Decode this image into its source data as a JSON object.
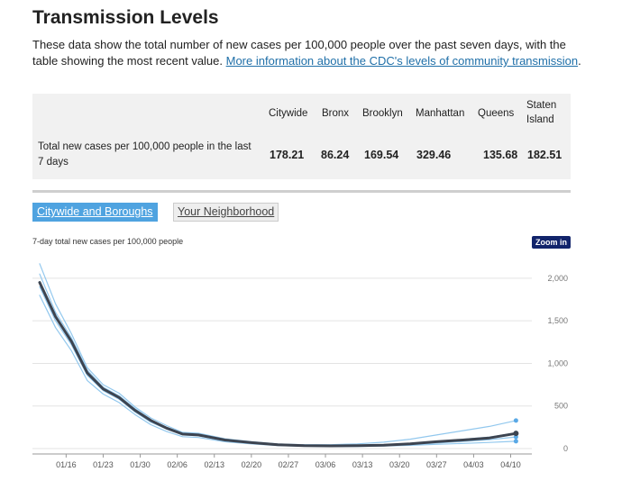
{
  "header": {
    "title": "Transmission Levels",
    "desc_text": "These data show the total number of new cases per 100,000 people over the past seven days, with the table showing the most recent value. ",
    "desc_link": "More information about the CDC's levels of community transmission",
    "desc_end": "."
  },
  "table": {
    "headers": [
      "Citywide",
      "Bronx",
      "Brooklyn",
      "Manhattan",
      "Queens",
      "Staten Island"
    ],
    "row_label": "Total new cases per 100,000 people in the last 7 days",
    "values": [
      "178.21",
      "86.24",
      "169.54",
      "329.46",
      "135.68",
      "182.51"
    ]
  },
  "tabs": {
    "active": "Citywide and Boroughs",
    "inactive": "Your Neighborhood"
  },
  "zoom_label": "Zoom in",
  "colors": {
    "citywide": "#3d4450",
    "borough": "#92c8ee",
    "dot": "#5aa9e6",
    "grid": "#e3e3e3"
  },
  "chart_data": {
    "type": "line",
    "title": "7-day total new cases per 100,000 people",
    "ylabel": "7-day total new cases per 100,000 people",
    "ylim": [
      0,
      2200
    ],
    "yticks": [
      0,
      500,
      1000,
      1500,
      2000
    ],
    "ytick_labels": [
      "0",
      "500",
      "1,000",
      "1,500",
      "2,000"
    ],
    "xlim": [
      0,
      93
    ],
    "x_tick_positions": [
      5,
      12,
      19,
      26,
      33,
      40,
      47,
      54,
      61,
      68,
      75,
      82,
      89
    ],
    "xtick_labels": [
      "01/16",
      "01/23",
      "01/30",
      "02/06",
      "02/13",
      "02/20",
      "02/27",
      "03/06",
      "03/13",
      "03/20",
      "03/27",
      "04/03",
      "04/10"
    ],
    "series": [
      {
        "name": "Citywide",
        "x": [
          0,
          3,
          6,
          9,
          12,
          15,
          18,
          21,
          24,
          27,
          30,
          35,
          40,
          45,
          50,
          55,
          60,
          65,
          70,
          75,
          80,
          85,
          90
        ],
        "values": [
          1950,
          1550,
          1260,
          890,
          700,
          600,
          450,
          330,
          240,
          170,
          160,
          100,
          70,
          45,
          35,
          32,
          35,
          40,
          55,
          80,
          100,
          125,
          178
        ]
      },
      {
        "name": "Manhattan",
        "x": [
          0,
          3,
          6,
          9,
          12,
          15,
          18,
          21,
          24,
          27,
          30,
          35,
          40,
          45,
          50,
          55,
          60,
          65,
          70,
          75,
          80,
          85,
          90
        ],
        "values": [
          2170,
          1700,
          1350,
          950,
          750,
          650,
          490,
          360,
          270,
          190,
          180,
          115,
          80,
          55,
          45,
          45,
          55,
          75,
          110,
          160,
          210,
          260,
          329
        ]
      },
      {
        "name": "Brooklyn",
        "x": [
          0,
          3,
          6,
          9,
          12,
          15,
          18,
          21,
          24,
          27,
          30,
          35,
          40,
          45,
          50,
          55,
          60,
          65,
          70,
          75,
          80,
          85,
          90
        ],
        "values": [
          1960,
          1560,
          1260,
          880,
          700,
          600,
          450,
          330,
          240,
          170,
          160,
          100,
          70,
          45,
          35,
          30,
          35,
          40,
          52,
          78,
          98,
          120,
          170
        ]
      },
      {
        "name": "Queens",
        "x": [
          0,
          3,
          6,
          9,
          12,
          15,
          18,
          21,
          24,
          27,
          30,
          35,
          40,
          45,
          50,
          55,
          60,
          65,
          70,
          75,
          80,
          85,
          90
        ],
        "values": [
          1900,
          1500,
          1220,
          860,
          680,
          580,
          430,
          310,
          230,
          160,
          150,
          95,
          65,
          40,
          32,
          28,
          30,
          35,
          45,
          65,
          85,
          105,
          136
        ]
      },
      {
        "name": "Bronx",
        "x": [
          0,
          3,
          6,
          9,
          12,
          15,
          18,
          21,
          24,
          27,
          30,
          35,
          40,
          45,
          50,
          55,
          60,
          65,
          70,
          75,
          80,
          85,
          90
        ],
        "values": [
          1800,
          1420,
          1150,
          800,
          640,
          540,
          400,
          280,
          200,
          140,
          130,
          80,
          55,
          35,
          28,
          25,
          25,
          30,
          38,
          50,
          60,
          72,
          86
        ]
      },
      {
        "name": "Staten Island",
        "x": [
          0,
          3,
          6,
          9,
          12,
          15,
          18,
          21,
          24,
          27,
          30,
          35,
          40,
          45,
          50,
          55,
          60,
          65,
          70,
          75,
          80,
          85,
          90
        ],
        "values": [
          2050,
          1600,
          1300,
          920,
          720,
          620,
          470,
          340,
          250,
          180,
          170,
          105,
          72,
          48,
          38,
          34,
          38,
          45,
          60,
          85,
          110,
          135,
          183
        ]
      }
    ]
  }
}
